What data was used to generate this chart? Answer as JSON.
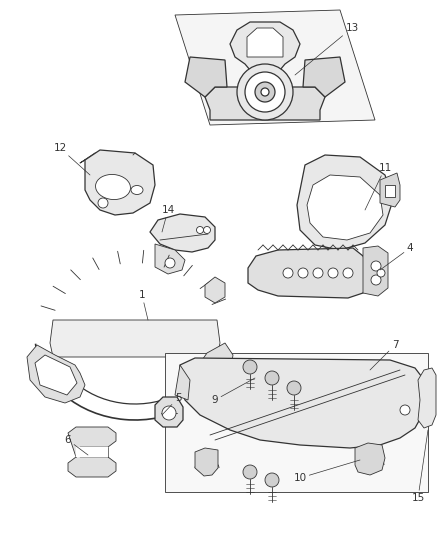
{
  "background_color": "#ffffff",
  "line_color": "#333333",
  "label_color": "#333333",
  "fig_width": 4.38,
  "fig_height": 5.33,
  "dpi": 100
}
